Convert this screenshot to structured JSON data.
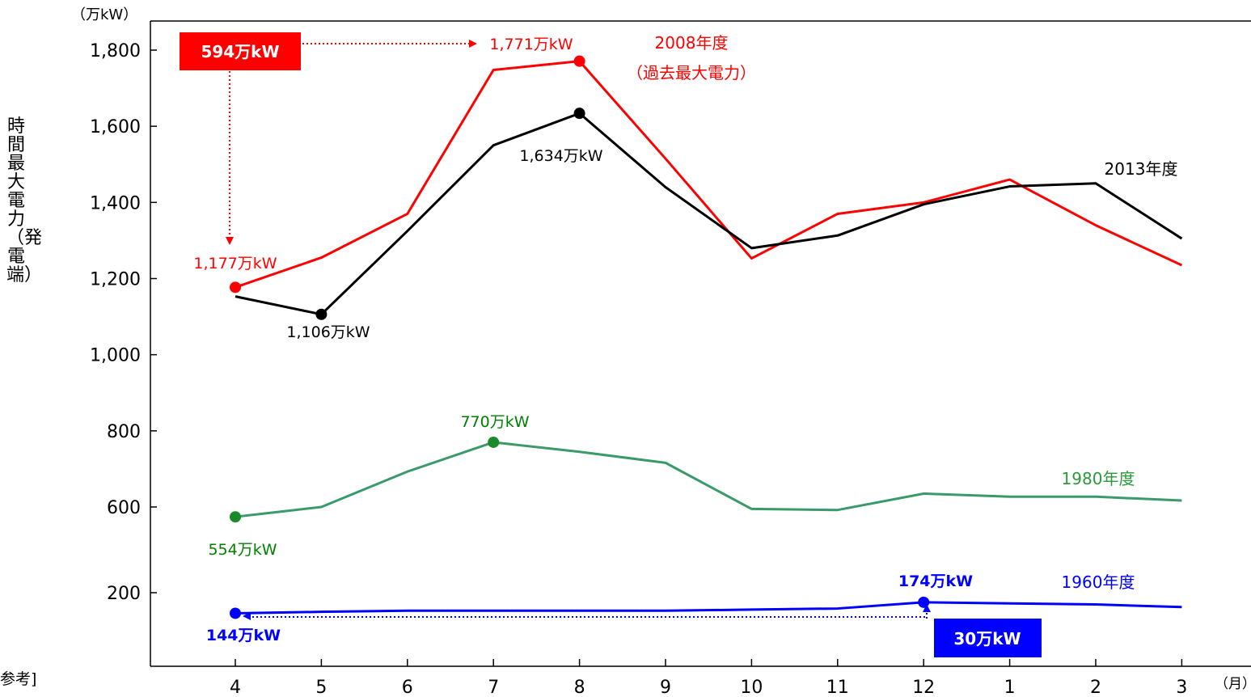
{
  "chart_data": {
    "type": "line",
    "unit_label": "（万kW）",
    "xunit_label": "（月）",
    "ylabel": "時間最大電力（発電端）",
    "categories": [
      "4",
      "5",
      "6",
      "7",
      "8",
      "9",
      "10",
      "11",
      "12",
      "1",
      "2",
      "3"
    ],
    "y_ticks": [
      200,
      600,
      800,
      1000,
      1200,
      1400,
      1600,
      1800
    ],
    "y_tick_labels": [
      "200",
      "600",
      "800",
      "1,000",
      "1,200",
      "1,400",
      "1,600",
      "1,800"
    ],
    "grid": false,
    "series": [
      {
        "name": "2008年度",
        "name_line2": "（過去最大電力）",
        "color": "#ff0000",
        "values": [
          1177,
          1255,
          1370,
          1748,
          1771,
          1515,
          1253,
          1370,
          1400,
          1460,
          1340,
          1235
        ],
        "markers": [
          0,
          4
        ]
      },
      {
        "name": "2013年度",
        "color": "#000000",
        "values": [
          1153,
          1106,
          1325,
          1550,
          1634,
          1440,
          1280,
          1313,
          1395,
          1442,
          1450,
          1305
        ],
        "markers": [
          1,
          4
        ]
      },
      {
        "name": "1980年度",
        "color": "#3a9a6a",
        "values": [
          554,
          600,
          693,
          770,
          745,
          716,
          591,
          586,
          635,
          627,
          627,
          617
        ],
        "markers": [
          0,
          3
        ]
      },
      {
        "name": "1960年度",
        "color": "#0000ff",
        "values": [
          144,
          148,
          151,
          151,
          151,
          151,
          154,
          157,
          174,
          171,
          168,
          161
        ],
        "markers": [
          0,
          8
        ]
      }
    ],
    "annotations": [
      {
        "text": "1,771万kW",
        "color": "#ff0000"
      },
      {
        "text": "1,177万kW",
        "color": "#ff0000"
      },
      {
        "text": "1,634万kW",
        "color": "#000000"
      },
      {
        "text": "1,106万kW",
        "color": "#000000"
      },
      {
        "text": "770万kW",
        "color": "#008000"
      },
      {
        "text": "554万kW",
        "color": "#008000"
      },
      {
        "text": "174万kW",
        "color": "#0000ff"
      },
      {
        "text": "144万kW",
        "color": "#0000ff"
      }
    ],
    "boxes": [
      {
        "text": "594万kW",
        "color": "#ff0000"
      },
      {
        "text": "30万kW",
        "color": "#0000ff"
      }
    ],
    "footnote": "参考]"
  }
}
